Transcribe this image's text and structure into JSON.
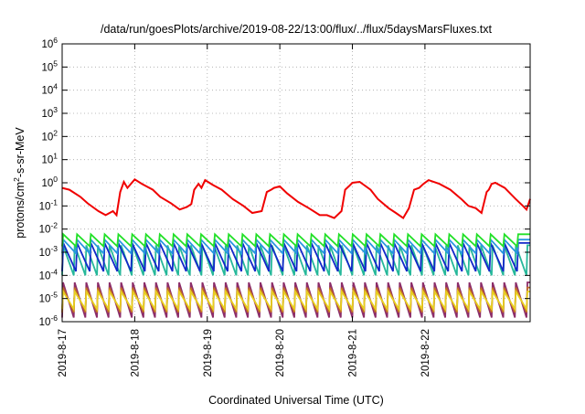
{
  "chart_data": {
    "type": "line",
    "title": "/data/run/goesPlots/archive/2019-08-22/13:00/flux/../flux/5daysMarsFluxes.txt",
    "xlabel": "Coordinated Universal Time (UTC)",
    "ylabel": {
      "prefix": "protons/cm",
      "sup": "2",
      "suffix": "-s-sr-MeV"
    },
    "y_scale": "log",
    "ylim": [
      1e-06,
      1000000.0
    ],
    "xlim": [
      0,
      6.45
    ],
    "x_ticks": [
      {
        "value": 0,
        "label": "2019-8-17"
      },
      {
        "value": 1,
        "label": "2019-8-18"
      },
      {
        "value": 2,
        "label": "2019-8-19"
      },
      {
        "value": 3,
        "label": "2019-8-20"
      },
      {
        "value": 4,
        "label": "2019-8-21"
      },
      {
        "value": 5,
        "label": "2019-8-22"
      }
    ],
    "y_ticks": [
      {
        "value": 1e-06,
        "base": "10",
        "exp": "-6"
      },
      {
        "value": 1e-05,
        "base": "10",
        "exp": "-5"
      },
      {
        "value": 0.0001,
        "base": "10",
        "exp": "-4"
      },
      {
        "value": 0.001,
        "base": "10",
        "exp": "-3"
      },
      {
        "value": 0.01,
        "base": "10",
        "exp": "-2"
      },
      {
        "value": 0.1,
        "base": "10",
        "exp": "-1"
      },
      {
        "value": 1,
        "base": "10",
        "exp": "0"
      },
      {
        "value": 10.0,
        "base": "10",
        "exp": "1"
      },
      {
        "value": 100.0,
        "base": "10",
        "exp": "2"
      },
      {
        "value": 1000.0,
        "base": "10",
        "exp": "3"
      },
      {
        "value": 10000.0,
        "base": "10",
        "exp": "4"
      },
      {
        "value": 100000.0,
        "base": "10",
        "exp": "5"
      },
      {
        "value": 1000000.0,
        "base": "10",
        "exp": "6"
      }
    ],
    "grid": true,
    "series": [
      {
        "color": "#8c2d6a",
        "period": 0.16,
        "high": 5e-05,
        "low": 1.5e-06
      },
      {
        "color": "#c06a2a",
        "period": 0.16,
        "high": 3e-05,
        "low": 2.5e-06
      },
      {
        "color": "#e8d020",
        "period": 0.16,
        "high": 2e-05,
        "low": 3.5e-06
      },
      {
        "color": "#26b89a",
        "period": 0.16,
        "high": 0.002,
        "low": 0.0001
      },
      {
        "color": "#1228c8",
        "period": 0.19,
        "high": 0.0025,
        "low": 0.00015
      },
      {
        "color": "#2896e0",
        "period": 0.19,
        "high": 0.0035,
        "low": 0.0009
      },
      {
        "color": "#22e028",
        "period": 0.19,
        "high": 0.006,
        "low": 0.0018
      },
      {
        "color": "#f00000",
        "x": [
          0.0,
          0.1,
          0.25,
          0.35,
          0.5,
          0.6,
          0.7,
          0.75,
          0.8,
          0.85,
          0.9,
          1.0,
          1.1,
          1.25,
          1.35,
          1.5,
          1.62,
          1.72,
          1.78,
          1.82,
          1.88,
          1.92,
          1.97,
          2.08,
          2.2,
          2.35,
          2.5,
          2.62,
          2.75,
          2.82,
          2.88,
          2.92,
          3.0,
          3.1,
          3.25,
          3.4,
          3.55,
          3.65,
          3.75,
          3.85,
          3.9,
          3.95,
          4.0,
          4.1,
          4.25,
          4.35,
          4.5,
          4.6,
          4.7,
          4.78,
          4.85,
          4.92,
          4.98,
          5.05,
          5.2,
          5.35,
          5.5,
          5.6,
          5.7,
          5.78,
          5.85,
          5.88,
          5.92,
          5.97,
          6.1,
          6.25,
          6.35,
          6.4,
          6.45
        ],
        "y": [
          0.6,
          0.5,
          0.25,
          0.13,
          0.06,
          0.04,
          0.06,
          0.04,
          0.4,
          1.1,
          0.6,
          1.4,
          0.9,
          0.5,
          0.25,
          0.13,
          0.07,
          0.09,
          0.12,
          0.5,
          0.9,
          0.6,
          1.3,
          0.8,
          0.5,
          0.2,
          0.1,
          0.05,
          0.06,
          0.4,
          0.5,
          0.6,
          0.7,
          0.35,
          0.15,
          0.08,
          0.04,
          0.04,
          0.03,
          0.06,
          0.5,
          0.7,
          1.0,
          1.1,
          0.5,
          0.2,
          0.08,
          0.05,
          0.03,
          0.08,
          0.5,
          0.6,
          0.9,
          1.3,
          0.9,
          0.5,
          0.2,
          0.1,
          0.08,
          0.05,
          0.4,
          0.5,
          0.9,
          1.0,
          0.6,
          0.2,
          0.1,
          0.07,
          0.2
        ]
      }
    ]
  }
}
